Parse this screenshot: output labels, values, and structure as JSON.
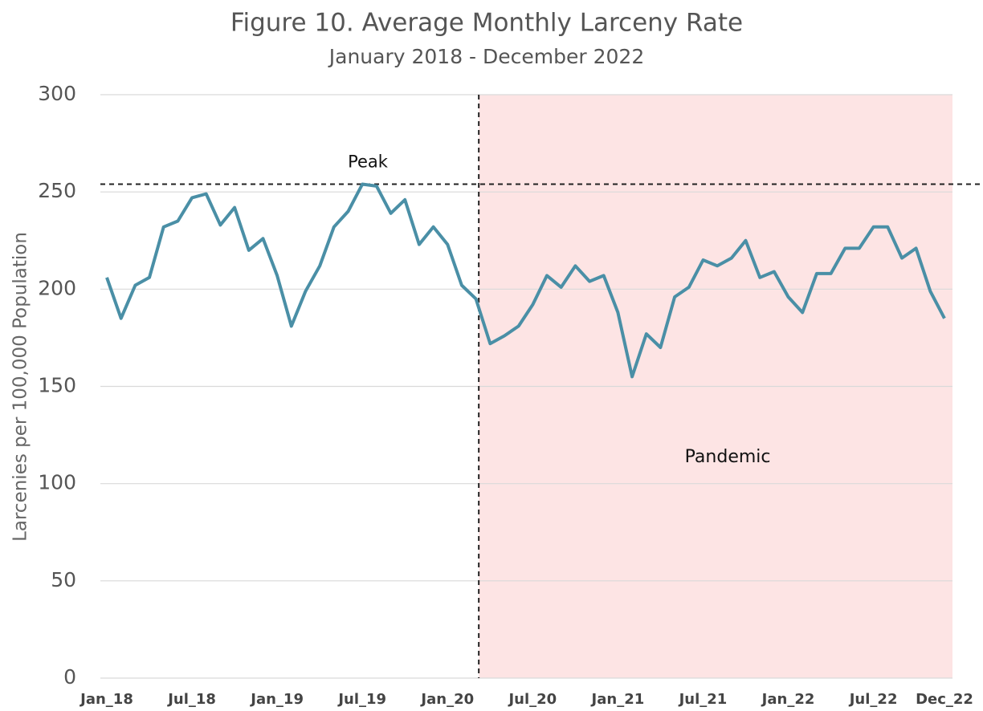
{
  "chart_data": {
    "type": "line",
    "title": "Figure 10. Average Monthly Larceny Rate",
    "subtitle": "January 2018 - December 2022",
    "y_label": "Larcenies per 100,000 Population",
    "categories": [
      "Jan_18",
      null,
      null,
      null,
      null,
      null,
      "Jul_18",
      null,
      null,
      null,
      null,
      null,
      "Jan_19",
      null,
      null,
      null,
      null,
      null,
      "Jul_19",
      null,
      null,
      null,
      null,
      null,
      "Jan_20",
      null,
      null,
      null,
      null,
      null,
      "Jul_20",
      null,
      null,
      null,
      null,
      null,
      "Jan_21",
      null,
      null,
      null,
      null,
      null,
      "Jul_21",
      null,
      null,
      null,
      null,
      null,
      "Jan_22",
      null,
      null,
      null,
      null,
      null,
      "Jul_22",
      null,
      null,
      null,
      null,
      "Dec_22"
    ],
    "series": [
      {
        "name": "Larceny rate",
        "color": "#4a8fa6",
        "values": [
          206,
          185,
          202,
          206,
          232,
          235,
          247,
          249,
          233,
          242,
          220,
          226,
          207,
          181,
          199,
          212,
          232,
          240,
          254,
          253,
          239,
          246,
          223,
          232,
          223,
          202,
          195,
          172,
          176,
          181,
          192,
          207,
          201,
          212,
          204,
          207,
          188,
          155,
          177,
          170,
          196,
          201,
          215,
          212,
          216,
          225,
          206,
          209,
          196,
          188,
          208,
          208,
          221,
          221,
          232,
          232,
          216,
          221,
          199,
          185
        ]
      }
    ],
    "ylim": [
      0,
      300
    ],
    "yticks": [
      0,
      50,
      100,
      150,
      200,
      250,
      300
    ],
    "grid": true,
    "reference_line": {
      "label": "Peak",
      "value": 254
    },
    "shaded_region": {
      "label": "Pandemic",
      "start": 26.2,
      "color": "#fde4e4"
    }
  }
}
